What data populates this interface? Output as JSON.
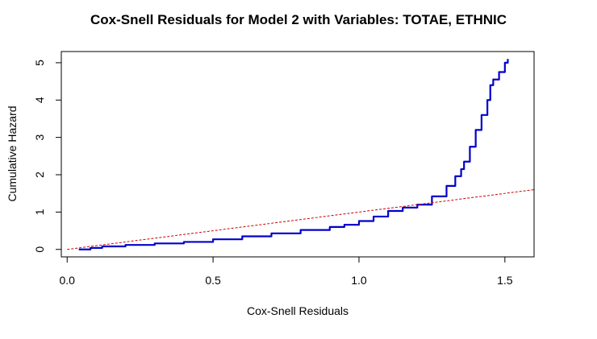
{
  "chart_data": {
    "type": "line",
    "title": "Cox-Snell Residuals for Model 2 with Variables: TOTAE, ETHNIC",
    "xlabel": "Cox-Snell Residuals",
    "ylabel": "Cumulative Hazard",
    "xlim": [
      -0.02,
      1.6
    ],
    "ylim": [
      -0.2,
      5.3
    ],
    "xticks": [
      0.0,
      0.5,
      1.0,
      1.5
    ],
    "xtick_labels": [
      "0.0",
      "0.5",
      "1.0",
      "1.5"
    ],
    "yticks": [
      0,
      1,
      2,
      3,
      4,
      5
    ],
    "ytick_labels": [
      "0",
      "1",
      "2",
      "3",
      "4",
      "5"
    ],
    "grid": false,
    "series": [
      {
        "color": "#0000cc",
        "style": "step",
        "x": [
          0.04,
          0.08,
          0.12,
          0.2,
          0.3,
          0.4,
          0.5,
          0.6,
          0.7,
          0.8,
          0.9,
          0.95,
          1.0,
          1.05,
          1.1,
          1.15,
          1.2,
          1.25,
          1.3,
          1.33,
          1.35,
          1.36,
          1.38,
          1.4,
          1.42,
          1.44,
          1.45,
          1.46,
          1.48,
          1.5,
          1.51
        ],
        "y": [
          0.0,
          0.04,
          0.08,
          0.12,
          0.16,
          0.2,
          0.27,
          0.35,
          0.43,
          0.52,
          0.6,
          0.66,
          0.76,
          0.88,
          1.03,
          1.12,
          1.2,
          1.42,
          1.7,
          1.96,
          2.15,
          2.35,
          2.75,
          3.2,
          3.6,
          4.0,
          4.4,
          4.55,
          4.75,
          5.0,
          5.1
        ]
      },
      {
        "color": "#cc0000",
        "style": "dashed",
        "x": [
          0.0,
          1.6
        ],
        "y": [
          0.0,
          1.6
        ]
      }
    ]
  }
}
